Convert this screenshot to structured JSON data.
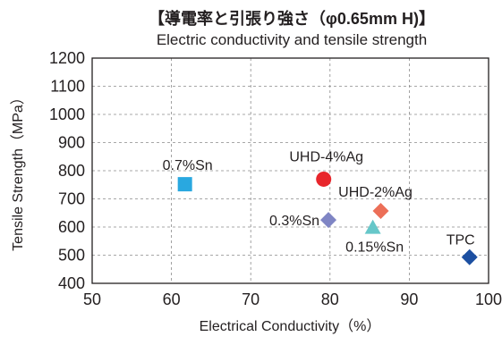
{
  "chart_data": {
    "type": "scatter",
    "title": "【導電率と引張り強さ（φ0.65mm H)】",
    "subtitle": "Electric conductivity and tensile strength",
    "xlabel": "Electrical Conductivity（%）",
    "ylabel": "Tensile Strength（MPa）",
    "xlim": [
      50,
      100
    ],
    "ylim": [
      400,
      1200
    ],
    "x_ticks": [
      "50",
      "60",
      "70",
      "80",
      "90",
      "100"
    ],
    "y_ticks": [
      "400",
      "500",
      "600",
      "700",
      "800",
      "900",
      "1000",
      "1100",
      "1200"
    ],
    "grid": "dashed",
    "legend": "none",
    "points": [
      {
        "label": "0.7%Sn",
        "x": 61.7,
        "y": 752,
        "marker": "square",
        "color": "#29a8e0"
      },
      {
        "label": "UHD-4%Ag",
        "x": 79.2,
        "y": 770,
        "marker": "circle",
        "color": "#e8262c"
      },
      {
        "label": "UHD-2%Ag",
        "x": 86.4,
        "y": 657,
        "marker": "diamond",
        "color": "#ec6f58"
      },
      {
        "label": "0.3%Sn",
        "x": 79.8,
        "y": 625,
        "marker": "diamond",
        "color": "#7f85c4"
      },
      {
        "label": "0.15%Sn",
        "x": 85.4,
        "y": 598,
        "marker": "triangle",
        "color": "#66c7c9"
      },
      {
        "label": "TPC",
        "x": 97.6,
        "y": 493,
        "marker": "diamond",
        "color": "#1c4fa1"
      }
    ]
  }
}
